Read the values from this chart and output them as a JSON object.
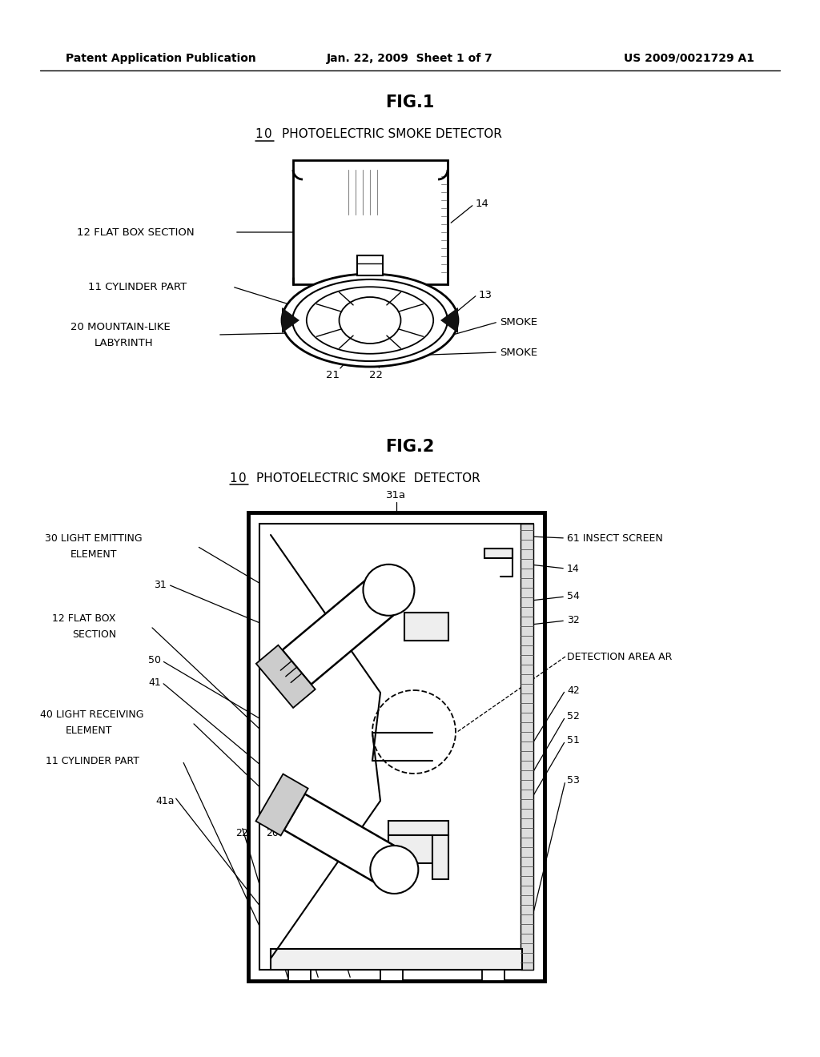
{
  "bg_color": "#ffffff",
  "line_color": "#000000",
  "text_color": "#000000",
  "header_left": "Patent Application Publication",
  "header_center": "Jan. 22, 2009  Sheet 1 of 7",
  "header_right": "US 2009/0021729 A1",
  "fig1_title": "FIG.1",
  "fig2_title": "FIG.2"
}
